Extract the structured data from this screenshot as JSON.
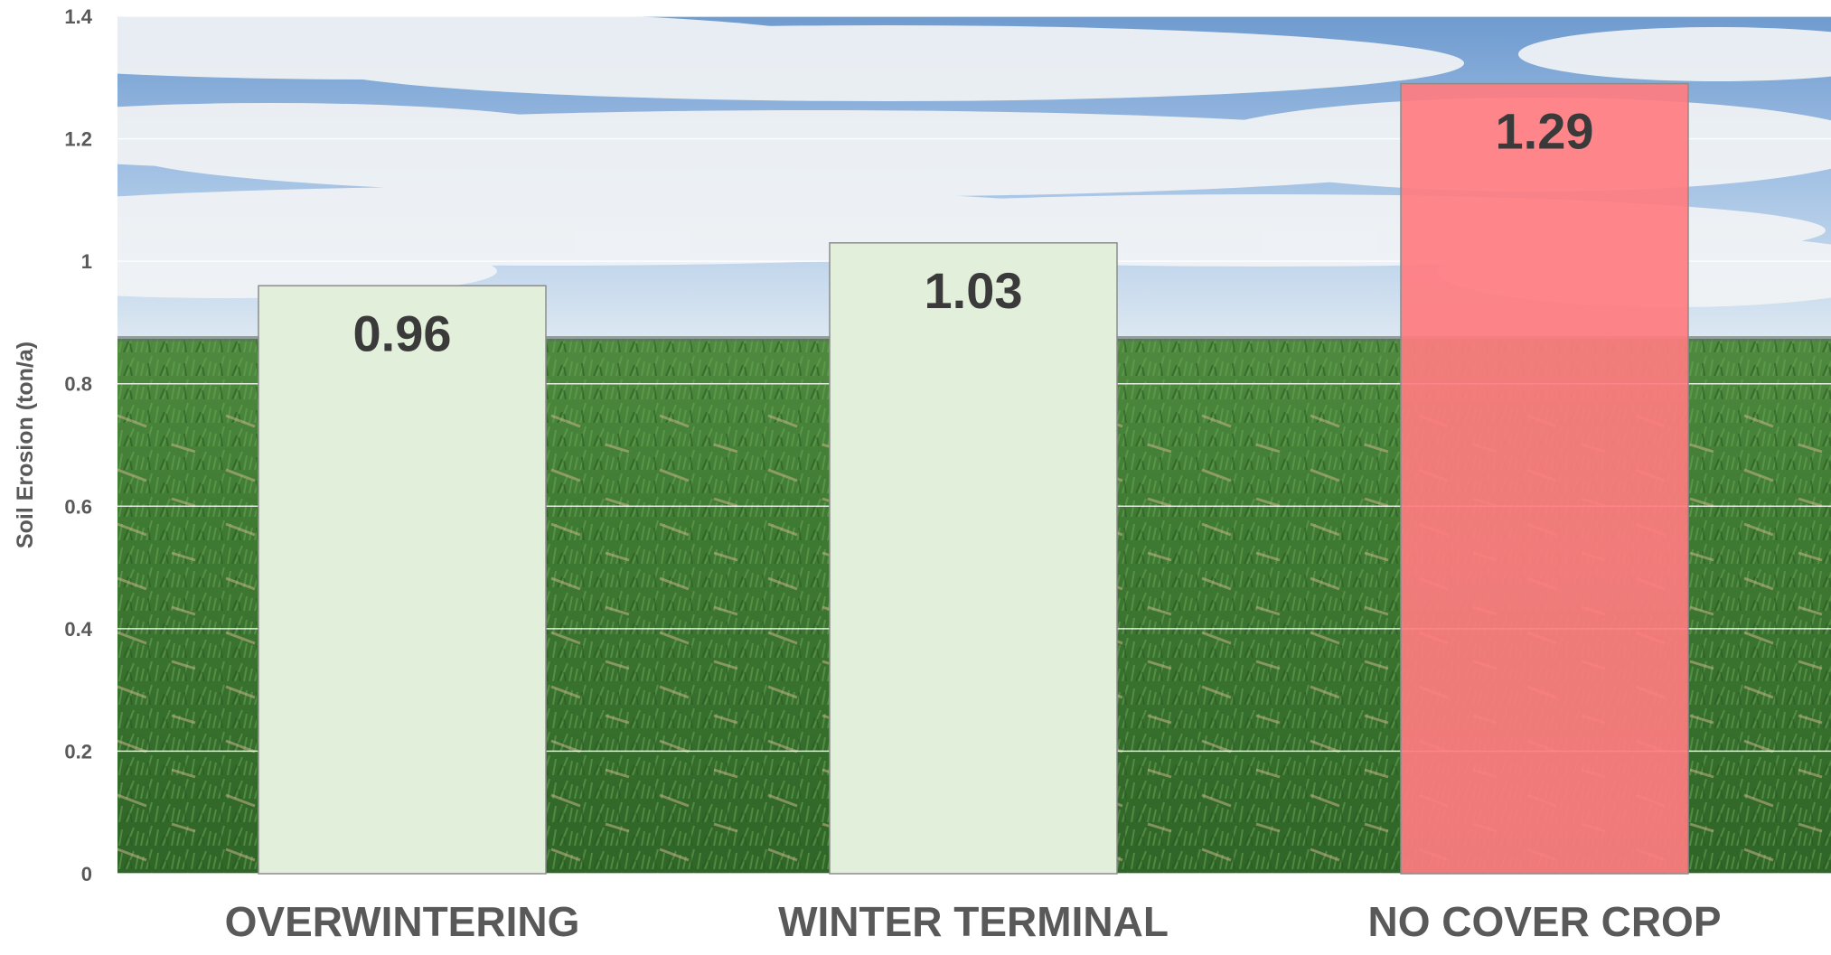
{
  "chart_data": {
    "type": "bar",
    "title": "",
    "xlabel": "",
    "ylabel": "Soil Erosion (ton/a)",
    "categories": [
      "OVERWINTERING",
      "WINTER TERMINAL",
      "NO COVER CROP"
    ],
    "values": [
      0.96,
      1.03,
      1.29
    ],
    "value_labels": [
      "0.96",
      "1.03",
      "1.29"
    ],
    "ylim": [
      0,
      1.4
    ],
    "yticks": [
      0,
      0.2,
      0.4,
      0.6,
      0.8,
      1,
      1.2,
      1.4
    ],
    "ytick_labels": [
      "0",
      "0.2",
      "0.4",
      "0.6",
      "0.8",
      "1",
      "1.2",
      "1.4"
    ],
    "grid": true,
    "legend": "none",
    "background": "photo of green cover-crop field under partly cloudy blue sky",
    "colors": {
      "bar_cover": "#e2efda",
      "bar_no_cover": "#ff7c80",
      "bar_stroke": "#8c8c8c",
      "gridline": "#ffffff",
      "text": "#595959",
      "value_text": "#3a3a3a"
    }
  }
}
